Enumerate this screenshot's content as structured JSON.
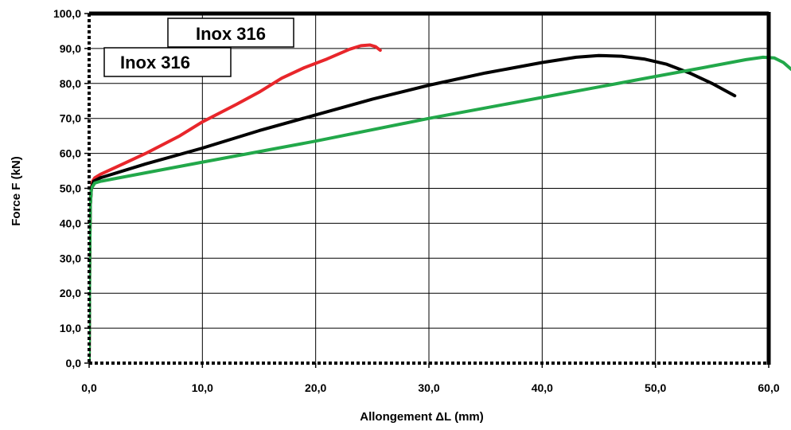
{
  "chart_data": {
    "type": "line",
    "title": "",
    "xlabel": "Allongement ΔL  (mm)",
    "ylabel": "Force F (kN)",
    "xlim": [
      0,
      60
    ],
    "ylim": [
      0,
      100
    ],
    "x_ticks": [
      "0,0",
      "10,0",
      "20,0",
      "30,0",
      "40,0",
      "50,0",
      "60,0"
    ],
    "y_ticks": [
      "0,0",
      "10,0",
      "20,0",
      "30,0",
      "40,0",
      "50,0",
      "60,0",
      "70,0",
      "80,0",
      "90,0",
      "100,0"
    ],
    "grid": true,
    "annotations": [
      "Inox 316",
      "Inox 316"
    ],
    "series": [
      {
        "color": "#e8262b",
        "points": [
          [
            0,
            0
          ],
          [
            0.05,
            30
          ],
          [
            0.1,
            45
          ],
          [
            0.2,
            50
          ],
          [
            0.3,
            52
          ],
          [
            0.5,
            53
          ],
          [
            1,
            54
          ],
          [
            3,
            57
          ],
          [
            5,
            60
          ],
          [
            8,
            65
          ],
          [
            10,
            69
          ],
          [
            13,
            74
          ],
          [
            15,
            77.5
          ],
          [
            17,
            81.5
          ],
          [
            19,
            84.5
          ],
          [
            21,
            87
          ],
          [
            23,
            89.8
          ],
          [
            24,
            90.8
          ],
          [
            24.8,
            91
          ],
          [
            25.3,
            90.5
          ],
          [
            25.7,
            89.5
          ]
        ]
      },
      {
        "color": "#000000",
        "points": [
          [
            0,
            0
          ],
          [
            0.05,
            30
          ],
          [
            0.1,
            45
          ],
          [
            0.2,
            50
          ],
          [
            0.4,
            52
          ],
          [
            1,
            53
          ],
          [
            5,
            57
          ],
          [
            10,
            61.5
          ],
          [
            15,
            66.5
          ],
          [
            20,
            71
          ],
          [
            25,
            75.5
          ],
          [
            30,
            79.5
          ],
          [
            35,
            83
          ],
          [
            40,
            86
          ],
          [
            43,
            87.5
          ],
          [
            45,
            88
          ],
          [
            47,
            87.8
          ],
          [
            49,
            87
          ],
          [
            51,
            85.5
          ],
          [
            53,
            83
          ],
          [
            55,
            80
          ],
          [
            57,
            76.5
          ]
        ]
      },
      {
        "color": "#22a84a",
        "points": [
          [
            0,
            0
          ],
          [
            0.05,
            30
          ],
          [
            0.1,
            45
          ],
          [
            0.2,
            50
          ],
          [
            0.5,
            51.5
          ],
          [
            1,
            52
          ],
          [
            10,
            57.5
          ],
          [
            20,
            63.5
          ],
          [
            30,
            70
          ],
          [
            40,
            76
          ],
          [
            50,
            82
          ],
          [
            55,
            85
          ],
          [
            58,
            86.8
          ],
          [
            59.5,
            87.5
          ],
          [
            60.5,
            87.3
          ],
          [
            61.3,
            86
          ],
          [
            62,
            84
          ]
        ]
      }
    ]
  }
}
